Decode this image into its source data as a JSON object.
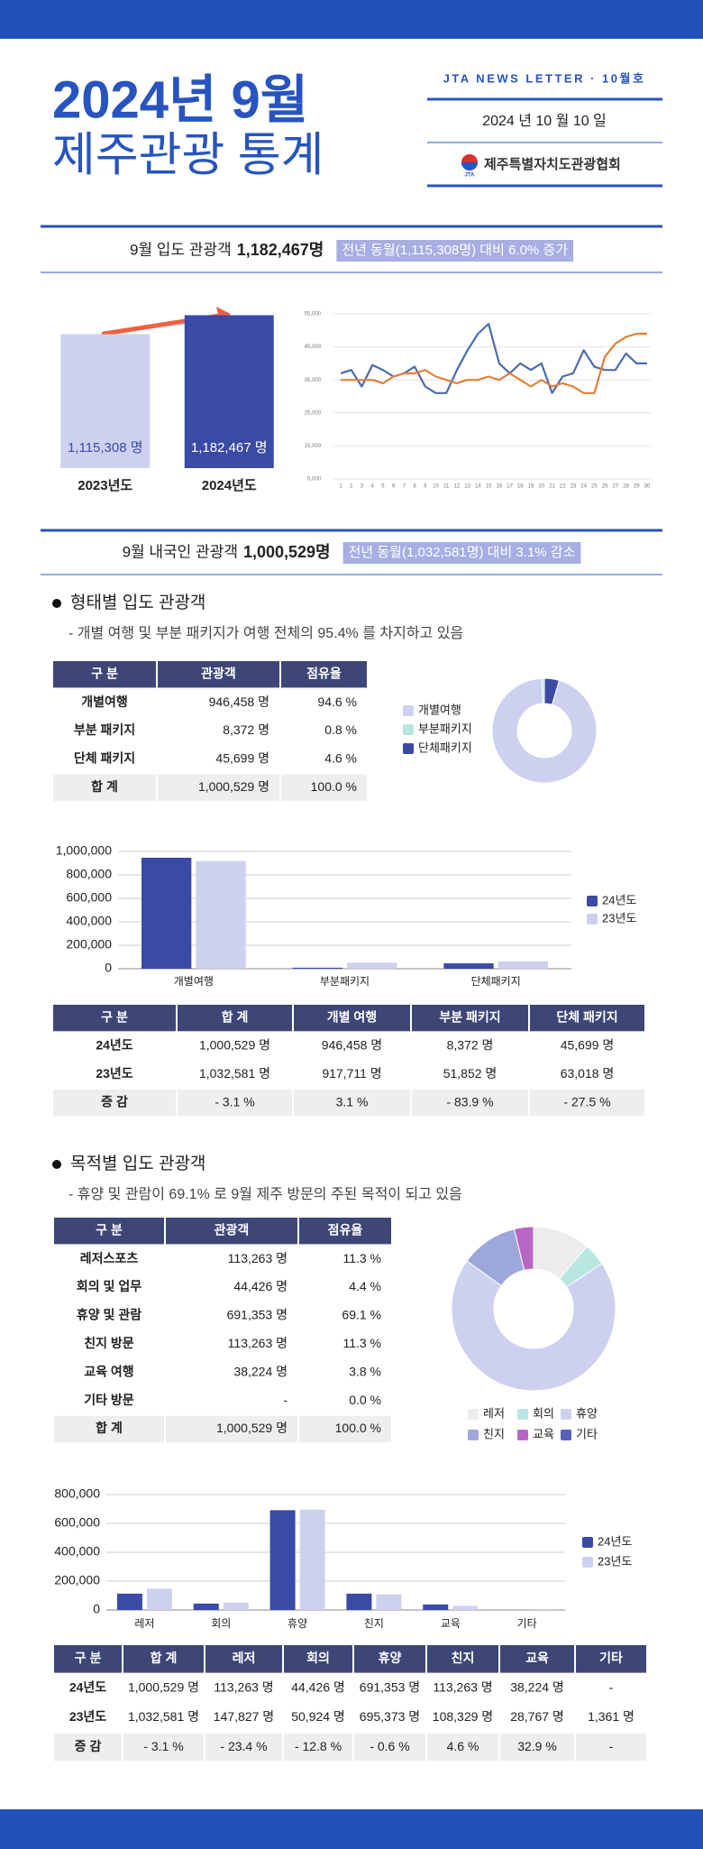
{
  "header": {
    "title_line1": "2024년 9월",
    "title_line2": "제주관광 통계",
    "newsletter": "JTA NEWS LETTER · 10월호",
    "date": "2024 년  10 월  10 일",
    "logo_text": "JTA",
    "publisher": "제주특별자치도관광협회"
  },
  "summary_total": {
    "label": "9월 입도 관광객",
    "value": "1,182,467명",
    "note": "전년 동월(1,115,308명) 대비 6.0% 증가"
  },
  "summary_domestic": {
    "label": "9월 내국인 관광객",
    "value": "1,000,529명",
    "note": "전년 동월(1,032,581명) 대비 3.1% 감소"
  },
  "section_type": {
    "heading": "형태별 입도 관광객",
    "description": "- 개별 여행 및 부분 패키지가 여행 전체의 95.4% 를 차지하고 있음",
    "share_table": {
      "header": [
        "구 분",
        "관광객",
        "점유율"
      ],
      "rows": [
        [
          "개별여행",
          "946,458 명",
          "94.6 %"
        ],
        [
          "부분 패키지",
          "8,372 명",
          "0.8 %"
        ],
        [
          "단체 패키지",
          "45,699 명",
          "4.6 %"
        ],
        [
          "합 계",
          "1,000,529 명",
          "100.0 %"
        ]
      ]
    },
    "compare_table": {
      "header": [
        "구 분",
        "합 계",
        "개별 여행",
        "부분 패키지",
        "단체 패키지"
      ],
      "rows": [
        [
          "24년도",
          "1,000,529 명",
          "946,458 명",
          "8,372 명",
          "45,699 명"
        ],
        [
          "23년도",
          "1,032,581 명",
          "917,711 명",
          "51,852 명",
          "63,018 명"
        ],
        [
          "증 감",
          "- 3.1 %",
          "3.1 %",
          "- 83.9 %",
          "- 27.5 %"
        ]
      ]
    }
  },
  "section_purpose": {
    "heading": "목적별 입도 관광객",
    "description": "- 휴양 및 관람이 69.1% 로 9월 제주 방문의 주된 목적이 되고 있음",
    "share_table": {
      "header": [
        "구 분",
        "관광객",
        "점유율"
      ],
      "rows": [
        [
          "레저스포츠",
          "113,263 명",
          "11.3 %"
        ],
        [
          "회의 및 업무",
          "44,426 명",
          "4.4 %"
        ],
        [
          "휴양 및 관람",
          "691,353 명",
          "69.1 %"
        ],
        [
          "친지 방문",
          "113,263 명",
          "11.3 %"
        ],
        [
          "교육 여행",
          "38,224 명",
          "3.8 %"
        ],
        [
          "기타 방문",
          "-",
          "0.0 %"
        ],
        [
          "합 계",
          "1,000,529 명",
          "100.0 %"
        ]
      ]
    },
    "compare_table": {
      "header": [
        "구 분",
        "합 계",
        "레저",
        "회의",
        "휴양",
        "친지",
        "교육",
        "기타"
      ],
      "rows": [
        [
          "24년도",
          "1,000,529 명",
          "113,263 명",
          "44,426 명",
          "691,353 명",
          "113,263 명",
          "38,224 명",
          "-"
        ],
        [
          "23년도",
          "1,032,581 명",
          "147,827 명",
          "50,924 명",
          "695,373 명",
          "108,329 명",
          "28,767 명",
          "1,361 명"
        ],
        [
          "증 감",
          "- 3.1 %",
          "- 23.4 %",
          "- 12.8 %",
          "- 0.6 %",
          "4.6 %",
          "32.9 %",
          "-"
        ]
      ]
    }
  },
  "chart_data": [
    {
      "type": "bar",
      "categories": [
        "2023년도",
        "2024년도"
      ],
      "values": [
        1115308,
        1182467
      ],
      "value_labels": [
        "1,115,308 명",
        "1,182,467 명"
      ],
      "colors": [
        "#cdd1ef",
        "#3a4aa5"
      ],
      "ylim": [
        640000,
        1200000
      ]
    },
    {
      "type": "line",
      "x": [
        1,
        2,
        3,
        4,
        5,
        6,
        7,
        8,
        9,
        10,
        11,
        12,
        13,
        14,
        15,
        16,
        17,
        18,
        19,
        20,
        21,
        22,
        23,
        24,
        25,
        26,
        27,
        28,
        29,
        30
      ],
      "xlim": [
        1,
        30
      ],
      "xticks": [
        1,
        2,
        3,
        4,
        5,
        6,
        7,
        8,
        9,
        10,
        11,
        12,
        13,
        14,
        15,
        16,
        17,
        18,
        19,
        20,
        21,
        22,
        23,
        24,
        25,
        26,
        27,
        28,
        29,
        30
      ],
      "ylim": [
        5000,
        55000
      ],
      "yticks": [
        {
          "value": 5000,
          "label": "5,000"
        },
        {
          "value": 15000,
          "label": "15,000"
        },
        {
          "value": 25000,
          "label": "25,000"
        },
        {
          "value": 35000,
          "label": "35,000"
        },
        {
          "value": 45000,
          "label": "45,000"
        },
        {
          "value": 55000,
          "label": "55,000"
        }
      ],
      "grid": true,
      "series": [
        {
          "color": "#4a6cae",
          "values": [
            37000,
            38000,
            33000,
            39500,
            38000,
            36000,
            37000,
            39000,
            33000,
            31000,
            31000,
            38000,
            44000,
            49000,
            52000,
            40000,
            37000,
            40000,
            38000,
            40000,
            31000,
            36000,
            37000,
            44000,
            39000,
            38000,
            38000,
            43000,
            40000,
            40000
          ]
        },
        {
          "color": "#e0803a",
          "values": [
            35000,
            35000,
            35000,
            35000,
            34000,
            36000,
            37000,
            37000,
            38000,
            36000,
            35000,
            34000,
            35000,
            35000,
            36000,
            35000,
            37000,
            35000,
            33000,
            35000,
            33000,
            34000,
            33000,
            31000,
            31000,
            42000,
            46000,
            48000,
            49000,
            49000
          ]
        }
      ]
    },
    {
      "type": "pie",
      "categories": [
        "개별여행",
        "부분패키지",
        "단체패키지"
      ],
      "values": [
        94.6,
        0.8,
        4.6
      ],
      "colors": [
        "#cdd1ef",
        "#b8e6e0",
        "#3a4aa5"
      ],
      "legend": "left"
    },
    {
      "type": "bar",
      "categories": [
        "개별여행",
        "부분패키지",
        "단체패키지"
      ],
      "ylim": [
        0,
        1000000
      ],
      "yticks": [
        0,
        {
          "value": 200000,
          "label": "200,000"
        },
        {
          "value": 400000,
          "label": "400,000"
        },
        {
          "value": 600000,
          "label": "600,000"
        },
        {
          "value": 800000,
          "label": "800,000"
        },
        {
          "value": 1000000,
          "label": "1,000,000"
        }
      ],
      "grid": true,
      "legend": "right",
      "series": [
        {
          "name": "24년도",
          "color": "#3a4aa5",
          "values": [
            946458,
            8372,
            45699
          ]
        },
        {
          "name": "23년도",
          "color": "#cdd1ef",
          "values": [
            917711,
            51852,
            63018
          ]
        }
      ]
    },
    {
      "type": "pie",
      "categories": [
        "레저",
        "회의",
        "휴양",
        "친지",
        "교육",
        "기타"
      ],
      "values": [
        11.3,
        4.4,
        69.1,
        11.3,
        3.8,
        0.0
      ],
      "colors": [
        "#ececec",
        "#b8e6e0",
        "#cdd1ef",
        "#9ea7d9",
        "#b866c6",
        "#5561b6"
      ],
      "legend": "bottom"
    },
    {
      "type": "bar",
      "categories": [
        "레저",
        "회의",
        "휴양",
        "친지",
        "교육",
        "기타"
      ],
      "ylim": [
        0,
        800000
      ],
      "yticks": [
        0,
        {
          "value": 200000,
          "label": "200,000"
        },
        {
          "value": 400000,
          "label": "400,000"
        },
        {
          "value": 600000,
          "label": "600,000"
        },
        {
          "value": 800000,
          "label": "800,000"
        }
      ],
      "grid": true,
      "legend": "right",
      "series": [
        {
          "name": "24년도",
          "color": "#3a4aa5",
          "values": [
            113263,
            44426,
            691353,
            113263,
            38224,
            null
          ]
        },
        {
          "name": "23년도",
          "color": "#cdd1ef",
          "values": [
            147827,
            50924,
            695373,
            108329,
            28767,
            1361
          ]
        }
      ]
    }
  ]
}
